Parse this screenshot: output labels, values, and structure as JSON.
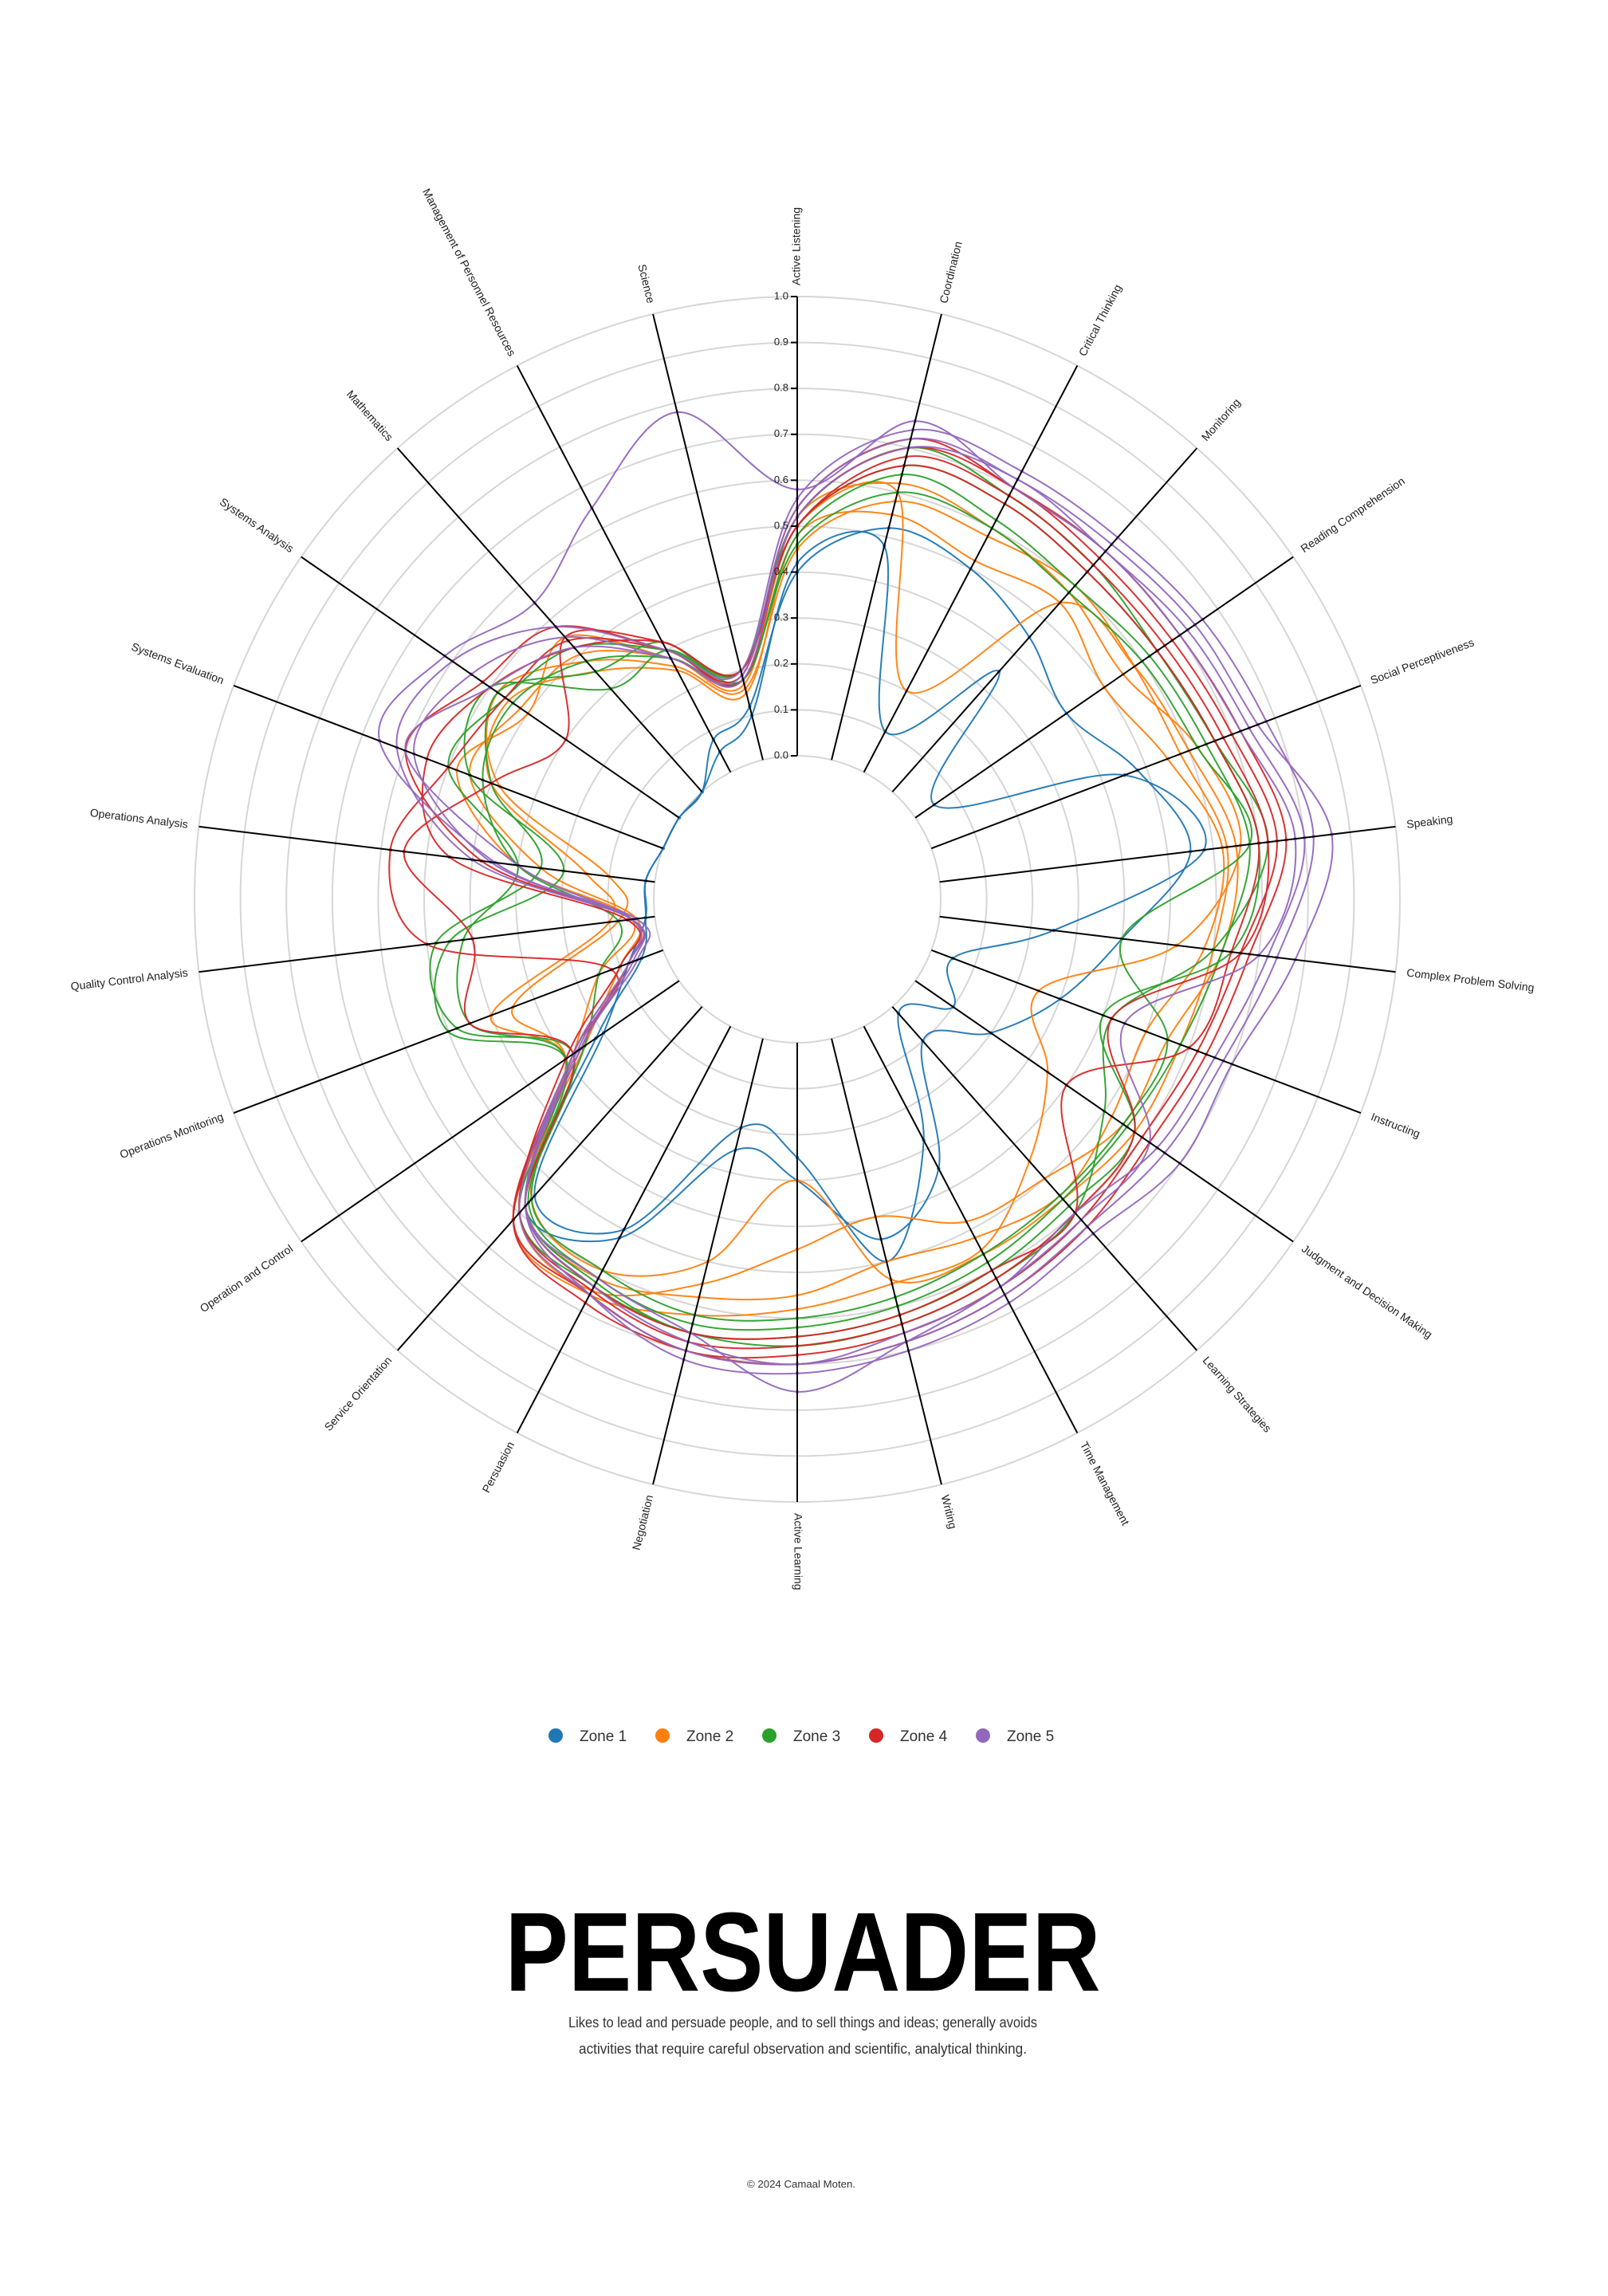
{
  "chart_data": {
    "type": "radar",
    "range": [
      0,
      1
    ],
    "ticks": [
      "0.0",
      "0.1",
      "0.2",
      "0.3",
      "0.4",
      "0.5",
      "0.6",
      "0.7",
      "0.8",
      "0.9",
      "1.0"
    ],
    "grid": true,
    "curve": "smooth-closed",
    "axes": [
      "Active Listening",
      "Coordination",
      "Critical Thinking",
      "Monitoring",
      "Reading Comprehension",
      "Social Perceptiveness",
      "Speaking",
      "Complex Problem Solving",
      "Instructing",
      "Judgment and Decision Making",
      "Learning Strategies",
      "Time Management",
      "Writing",
      "Active Learning",
      "Negotiation",
      "Persuasion",
      "Service Orientation",
      "Operation and Control",
      "Operations Monitoring",
      "Quality Control Analysis",
      "Operations Analysis",
      "Systems Evaluation",
      "Systems Analysis",
      "Mathematics",
      "Management of Personnel Resources",
      "Science"
    ],
    "legend": {
      "placement": "bottom",
      "entries": [
        {
          "label": "Zone 1",
          "color": "#1f77b4"
        },
        {
          "label": "Zone 2",
          "color": "#ff7f0e"
        },
        {
          "label": "Zone 3",
          "color": "#2ca02c"
        },
        {
          "label": "Zone 4",
          "color": "#d62728"
        },
        {
          "label": "Zone 5",
          "color": "#9467bd"
        }
      ]
    },
    "series": [
      {
        "zone": 1,
        "values": [
          0.42,
          0.48,
          0.1,
          0.35,
          0.05,
          0.45,
          0.58,
          0.25,
          0.05,
          0.1,
          0.02,
          0.28,
          0.5,
          0.25,
          0.2,
          0.5,
          0.55,
          0.2,
          0.08,
          0.02,
          0.02,
          0.0,
          0.0,
          0.0,
          0.05,
          0.1
        ]
      },
      {
        "zone": 1,
        "values": [
          0.4,
          0.52,
          0.5,
          0.45,
          0.4,
          0.48,
          0.55,
          0.4,
          0.3,
          0.2,
          0.1,
          0.35,
          0.45,
          0.3,
          0.25,
          0.52,
          0.58,
          0.22,
          0.05,
          0.02,
          0.02,
          0.0,
          0.0,
          0.0,
          0.08,
          0.12
        ]
      },
      {
        "zone": 2,
        "values": [
          0.48,
          0.55,
          0.52,
          0.55,
          0.5,
          0.55,
          0.62,
          0.58,
          0.5,
          0.52,
          0.55,
          0.52,
          0.5,
          0.55,
          0.58,
          0.62,
          0.58,
          0.3,
          0.4,
          0.1,
          0.15,
          0.4,
          0.45,
          0.35,
          0.25,
          0.15
        ]
      },
      {
        "zone": 2,
        "values": [
          0.5,
          0.6,
          0.2,
          0.55,
          0.58,
          0.6,
          0.65,
          0.62,
          0.55,
          0.55,
          0.5,
          0.48,
          0.4,
          0.45,
          0.55,
          0.65,
          0.6,
          0.28,
          0.15,
          0.05,
          0.3,
          0.48,
          0.4,
          0.45,
          0.28,
          0.18
        ]
      },
      {
        "zone": 2,
        "values": [
          0.52,
          0.62,
          0.6,
          0.58,
          0.55,
          0.62,
          0.66,
          0.52,
          0.25,
          0.35,
          0.45,
          0.55,
          0.55,
          0.58,
          0.62,
          0.66,
          0.62,
          0.25,
          0.1,
          0.04,
          0.25,
          0.45,
          0.42,
          0.4,
          0.28,
          0.17
        ]
      },
      {
        "zone": 2,
        "values": [
          0.45,
          0.58,
          0.58,
          0.6,
          0.58,
          0.58,
          0.63,
          0.6,
          0.58,
          0.58,
          0.56,
          0.56,
          0.54,
          0.3,
          0.5,
          0.6,
          0.56,
          0.3,
          0.35,
          0.08,
          0.1,
          0.38,
          0.48,
          0.38,
          0.26,
          0.16
        ]
      },
      {
        "zone": 3,
        "values": [
          0.5,
          0.66,
          0.66,
          0.64,
          0.64,
          0.66,
          0.7,
          0.64,
          0.4,
          0.58,
          0.58,
          0.6,
          0.62,
          0.64,
          0.66,
          0.63,
          0.58,
          0.3,
          0.5,
          0.45,
          0.2,
          0.45,
          0.5,
          0.3,
          0.3,
          0.2
        ]
      },
      {
        "zone": 3,
        "values": [
          0.48,
          0.64,
          0.62,
          0.6,
          0.62,
          0.64,
          0.68,
          0.62,
          0.58,
          0.56,
          0.56,
          0.58,
          0.6,
          0.62,
          0.64,
          0.62,
          0.57,
          0.28,
          0.48,
          0.48,
          0.25,
          0.4,
          0.48,
          0.35,
          0.32,
          0.18
        ]
      },
      {
        "zone": 3,
        "values": [
          0.52,
          0.7,
          0.68,
          0.66,
          0.64,
          0.66,
          0.72,
          0.6,
          0.42,
          0.5,
          0.6,
          0.62,
          0.64,
          0.66,
          0.66,
          0.64,
          0.6,
          0.3,
          0.45,
          0.42,
          0.3,
          0.5,
          0.46,
          0.42,
          0.3,
          0.2
        ]
      },
      {
        "zone": 3,
        "values": [
          0.46,
          0.6,
          0.6,
          0.58,
          0.6,
          0.62,
          0.68,
          0.4,
          0.55,
          0.55,
          0.55,
          0.56,
          0.58,
          0.6,
          0.62,
          0.6,
          0.56,
          0.25,
          0.15,
          0.08,
          0.3,
          0.42,
          0.44,
          0.38,
          0.28,
          0.18
        ]
      },
      {
        "zone": 4,
        "values": [
          0.52,
          0.7,
          0.7,
          0.68,
          0.68,
          0.7,
          0.74,
          0.66,
          0.62,
          0.6,
          0.62,
          0.64,
          0.66,
          0.68,
          0.7,
          0.66,
          0.62,
          0.28,
          0.12,
          0.5,
          0.58,
          0.5,
          0.46,
          0.44,
          0.3,
          0.18
        ]
      },
      {
        "zone": 4,
        "values": [
          0.5,
          0.68,
          0.68,
          0.66,
          0.66,
          0.68,
          0.72,
          0.66,
          0.42,
          0.58,
          0.6,
          0.62,
          0.64,
          0.66,
          0.68,
          0.65,
          0.6,
          0.3,
          0.1,
          0.06,
          0.45,
          0.55,
          0.5,
          0.42,
          0.32,
          0.2
        ]
      },
      {
        "zone": 4,
        "values": [
          0.54,
          0.72,
          0.7,
          0.7,
          0.7,
          0.72,
          0.76,
          0.68,
          0.64,
          0.62,
          0.64,
          0.66,
          0.68,
          0.7,
          0.7,
          0.68,
          0.62,
          0.26,
          0.08,
          0.05,
          0.38,
          0.6,
          0.52,
          0.48,
          0.3,
          0.19
        ]
      },
      {
        "zone": 4,
        "values": [
          0.5,
          0.66,
          0.66,
          0.64,
          0.64,
          0.66,
          0.7,
          0.64,
          0.6,
          0.4,
          0.6,
          0.6,
          0.62,
          0.64,
          0.66,
          0.64,
          0.58,
          0.28,
          0.45,
          0.4,
          0.55,
          0.4,
          0.3,
          0.45,
          0.32,
          0.2
        ]
      },
      {
        "zone": 5,
        "values": [
          0.56,
          0.74,
          0.74,
          0.74,
          0.76,
          0.78,
          0.82,
          0.74,
          0.68,
          0.66,
          0.64,
          0.66,
          0.68,
          0.7,
          0.7,
          0.66,
          0.6,
          0.28,
          0.08,
          0.05,
          0.4,
          0.62,
          0.6,
          0.48,
          0.3,
          0.2
        ]
      },
      {
        "zone": 5,
        "values": [
          0.54,
          0.72,
          0.72,
          0.72,
          0.74,
          0.76,
          0.86,
          0.78,
          0.7,
          0.7,
          0.66,
          0.68,
          0.7,
          0.72,
          0.72,
          0.66,
          0.58,
          0.26,
          0.06,
          0.04,
          0.36,
          0.58,
          0.55,
          0.45,
          0.28,
          0.19
        ]
      },
      {
        "zone": 5,
        "values": [
          0.58,
          0.76,
          0.7,
          0.7,
          0.7,
          0.72,
          0.78,
          0.7,
          0.45,
          0.62,
          0.62,
          0.64,
          0.68,
          0.76,
          0.66,
          0.62,
          0.58,
          0.27,
          0.07,
          0.05,
          0.35,
          0.66,
          0.62,
          0.55,
          0.65,
          0.78
        ]
      },
      {
        "zone": 5,
        "values": [
          0.52,
          0.7,
          0.72,
          0.7,
          0.72,
          0.74,
          0.8,
          0.72,
          0.66,
          0.64,
          0.6,
          0.64,
          0.66,
          0.7,
          0.68,
          0.64,
          0.58,
          0.28,
          0.08,
          0.05,
          0.3,
          0.6,
          0.5,
          0.42,
          0.28,
          0.18
        ]
      }
    ]
  },
  "poster": {
    "title": "PERSUADER",
    "description_line1": "Likes to lead and persuade people, and to sell things and ideas; generally avoids",
    "description_line2": "activities that require careful observation and scientific, analytical thinking.",
    "footer": "© 2024 Camaal Moten."
  }
}
